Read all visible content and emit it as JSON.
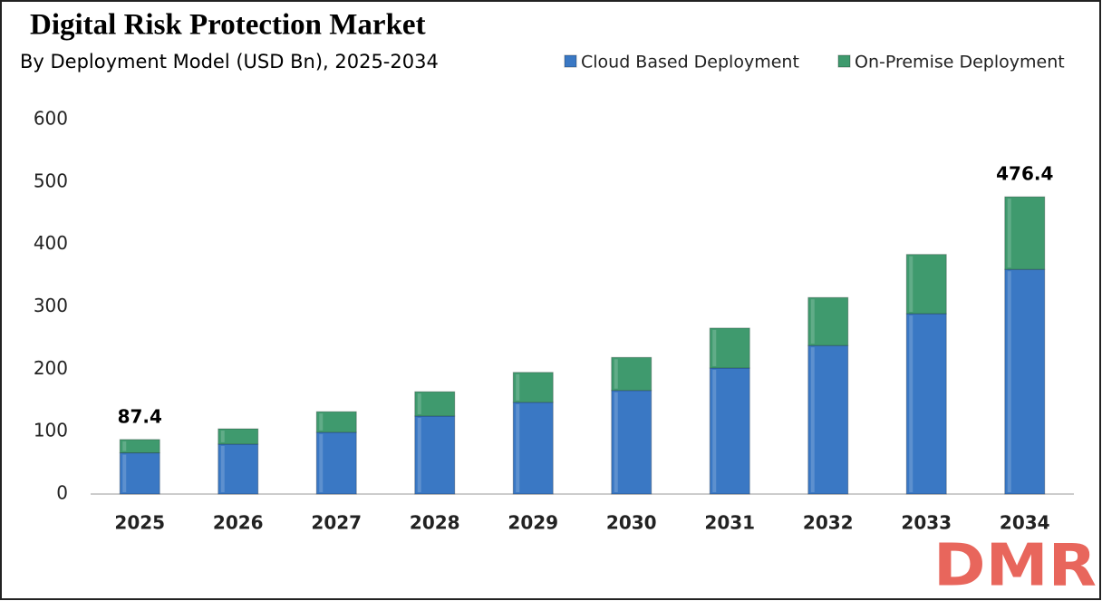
{
  "chart_data": {
    "type": "stacked_bar",
    "title": "Digital Risk Protection Market",
    "subtitle": "By Deployment Model (USD Bn), 2025-2034",
    "categories": [
      "2025",
      "2026",
      "2027",
      "2028",
      "2029",
      "2030",
      "2031",
      "2032",
      "2033",
      "2034"
    ],
    "series": [
      {
        "name": "Cloud Based Deployment",
        "color": "#3a78c4",
        "values": [
          66,
          80,
          99,
          125,
          147,
          166,
          202,
          238,
          289,
          360
        ]
      },
      {
        "name": "On-Premise Deployment",
        "color": "#3f9a6e",
        "values": [
          21.4,
          24.6,
          33,
          39,
          48,
          53,
          64,
          77,
          95,
          116.4
        ]
      }
    ],
    "total_labels": [
      87.4,
      null,
      null,
      null,
      null,
      null,
      null,
      null,
      null,
      476.4
    ],
    "ylim": [
      0,
      600
    ],
    "yticks": [
      0,
      100,
      200,
      300,
      400,
      500,
      600
    ],
    "grid": false,
    "legend": "top-right"
  },
  "logo": "DMR"
}
